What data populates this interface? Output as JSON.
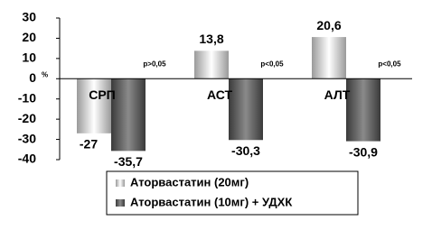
{
  "chart_data": {
    "type": "bar",
    "y_label": "%",
    "categories": [
      "СРП",
      "АСТ",
      "АЛТ"
    ],
    "series": [
      {
        "name": "Аторвастатин (20мг)",
        "color": "#9a9a9a",
        "values": [
          -27,
          13.8,
          20.6
        ],
        "value_labels": [
          "-27",
          "13,8",
          "20,6"
        ]
      },
      {
        "name": "Аторвастатин (10мг) + УДХК",
        "color": "#3a3a3a",
        "values": [
          -35.7,
          -30.3,
          -30.9
        ],
        "value_labels": [
          "-35,7",
          "-30,3",
          "-30,9"
        ]
      }
    ],
    "annotations": [
      "p>0,05",
      "p<0,05",
      "p<0,05"
    ],
    "ylim": [
      -40,
      30
    ],
    "yticks": [
      -40,
      -30,
      -20,
      -10,
      0,
      10,
      20,
      30
    ],
    "grid": false,
    "legend": "bottom"
  }
}
